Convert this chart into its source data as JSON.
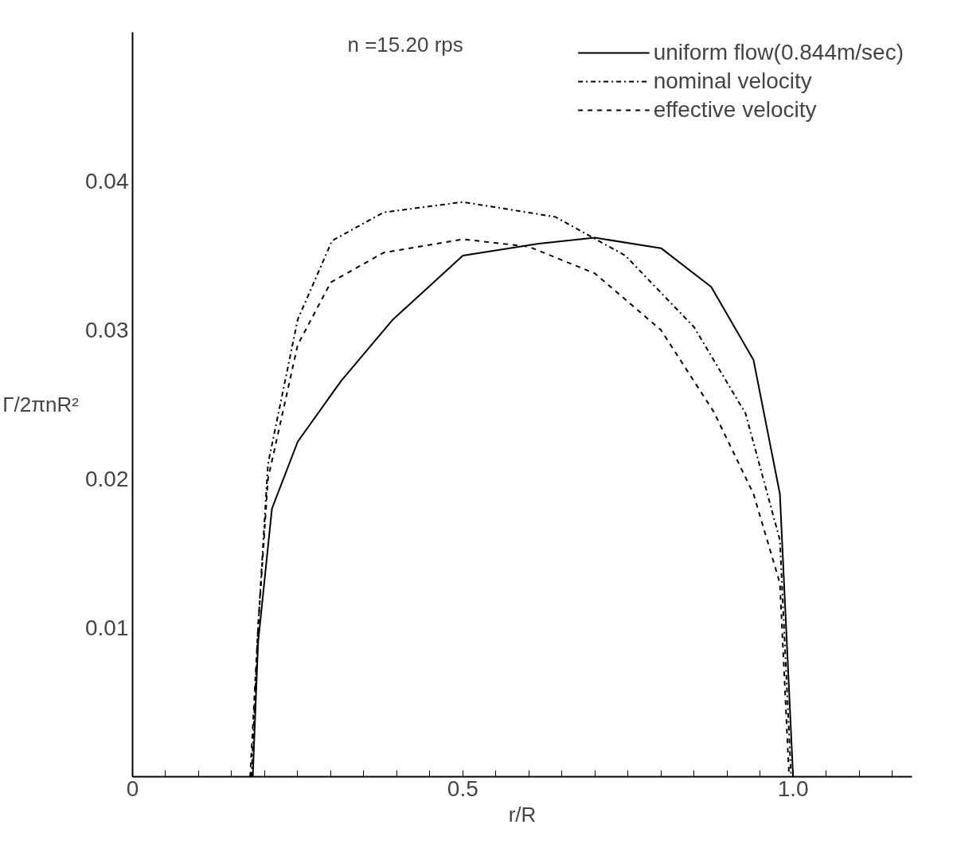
{
  "chart_data": {
    "type": "line",
    "xlabel": "r/R",
    "ylabel": "Γ/2πnR²",
    "annotations": [
      "n =15.20 rps"
    ],
    "xlim": [
      0,
      1.18
    ],
    "ylim": [
      0,
      0.05
    ],
    "xticks": [
      0,
      {
        "value": 0.05,
        "label": null
      },
      {
        "value": 0.1,
        "label": null
      },
      {
        "value": 0.15,
        "label": null
      },
      {
        "value": 0.2,
        "label": null
      },
      {
        "value": 0.25,
        "label": null
      },
      {
        "value": 0.3,
        "label": null
      },
      {
        "value": 0.35,
        "label": null
      },
      {
        "value": 0.4,
        "label": null
      },
      {
        "value": 0.45,
        "label": null
      },
      0.5,
      {
        "value": 0.55,
        "label": null
      },
      {
        "value": 0.6,
        "label": null
      },
      {
        "value": 0.65,
        "label": null
      },
      {
        "value": 0.7,
        "label": null
      },
      {
        "value": 0.75,
        "label": null
      },
      {
        "value": 0.8,
        "label": null
      },
      {
        "value": 0.85,
        "label": null
      },
      {
        "value": 0.9,
        "label": null
      },
      {
        "value": 0.95,
        "label": null
      },
      {
        "value": 1.0,
        "label": "1.0"
      },
      {
        "value": 1.05,
        "label": null
      },
      {
        "value": 1.1,
        "label": null
      },
      {
        "value": 1.15,
        "label": null
      }
    ],
    "yticks": [
      0.01,
      0.02,
      0.03,
      0.04
    ],
    "grid": false,
    "legend": "top right",
    "marker": "none",
    "series": [
      {
        "name": "uniform flow(0.844m/sec)",
        "color": "#000000",
        "line_style": "solid",
        "x": [
          0.182,
          0.19,
          0.211,
          0.25,
          0.316,
          0.394,
          0.5,
          0.615,
          0.7,
          0.8,
          0.876,
          0.94,
          0.98,
          1.0
        ],
        "values": [
          0,
          0.009,
          0.018,
          0.0225,
          0.0266,
          0.0307,
          0.035,
          0.0358,
          0.0362,
          0.0355,
          0.0329,
          0.028,
          0.019,
          0
        ]
      },
      {
        "name": "nominal velocity",
        "color": "#000000",
        "line_style": "dashdot",
        "x": [
          0.18,
          0.19,
          0.205,
          0.25,
          0.302,
          0.38,
          0.5,
          0.64,
          0.746,
          0.85,
          0.928,
          0.98,
          0.997
        ],
        "values": [
          0,
          0.01,
          0.021,
          0.0307,
          0.036,
          0.0379,
          0.0386,
          0.0376,
          0.035,
          0.0302,
          0.0244,
          0.0159,
          0
        ]
      },
      {
        "name": "effective velocity",
        "color": "#000000",
        "line_style": "dashed",
        "x": [
          0.178,
          0.19,
          0.205,
          0.25,
          0.3,
          0.38,
          0.5,
          0.6,
          0.7,
          0.8,
          0.88,
          0.94,
          0.98,
          0.994
        ],
        "values": [
          0,
          0.01,
          0.02,
          0.029,
          0.0332,
          0.0352,
          0.0361,
          0.0356,
          0.0338,
          0.03,
          0.0245,
          0.019,
          0.013,
          0
        ]
      }
    ]
  }
}
